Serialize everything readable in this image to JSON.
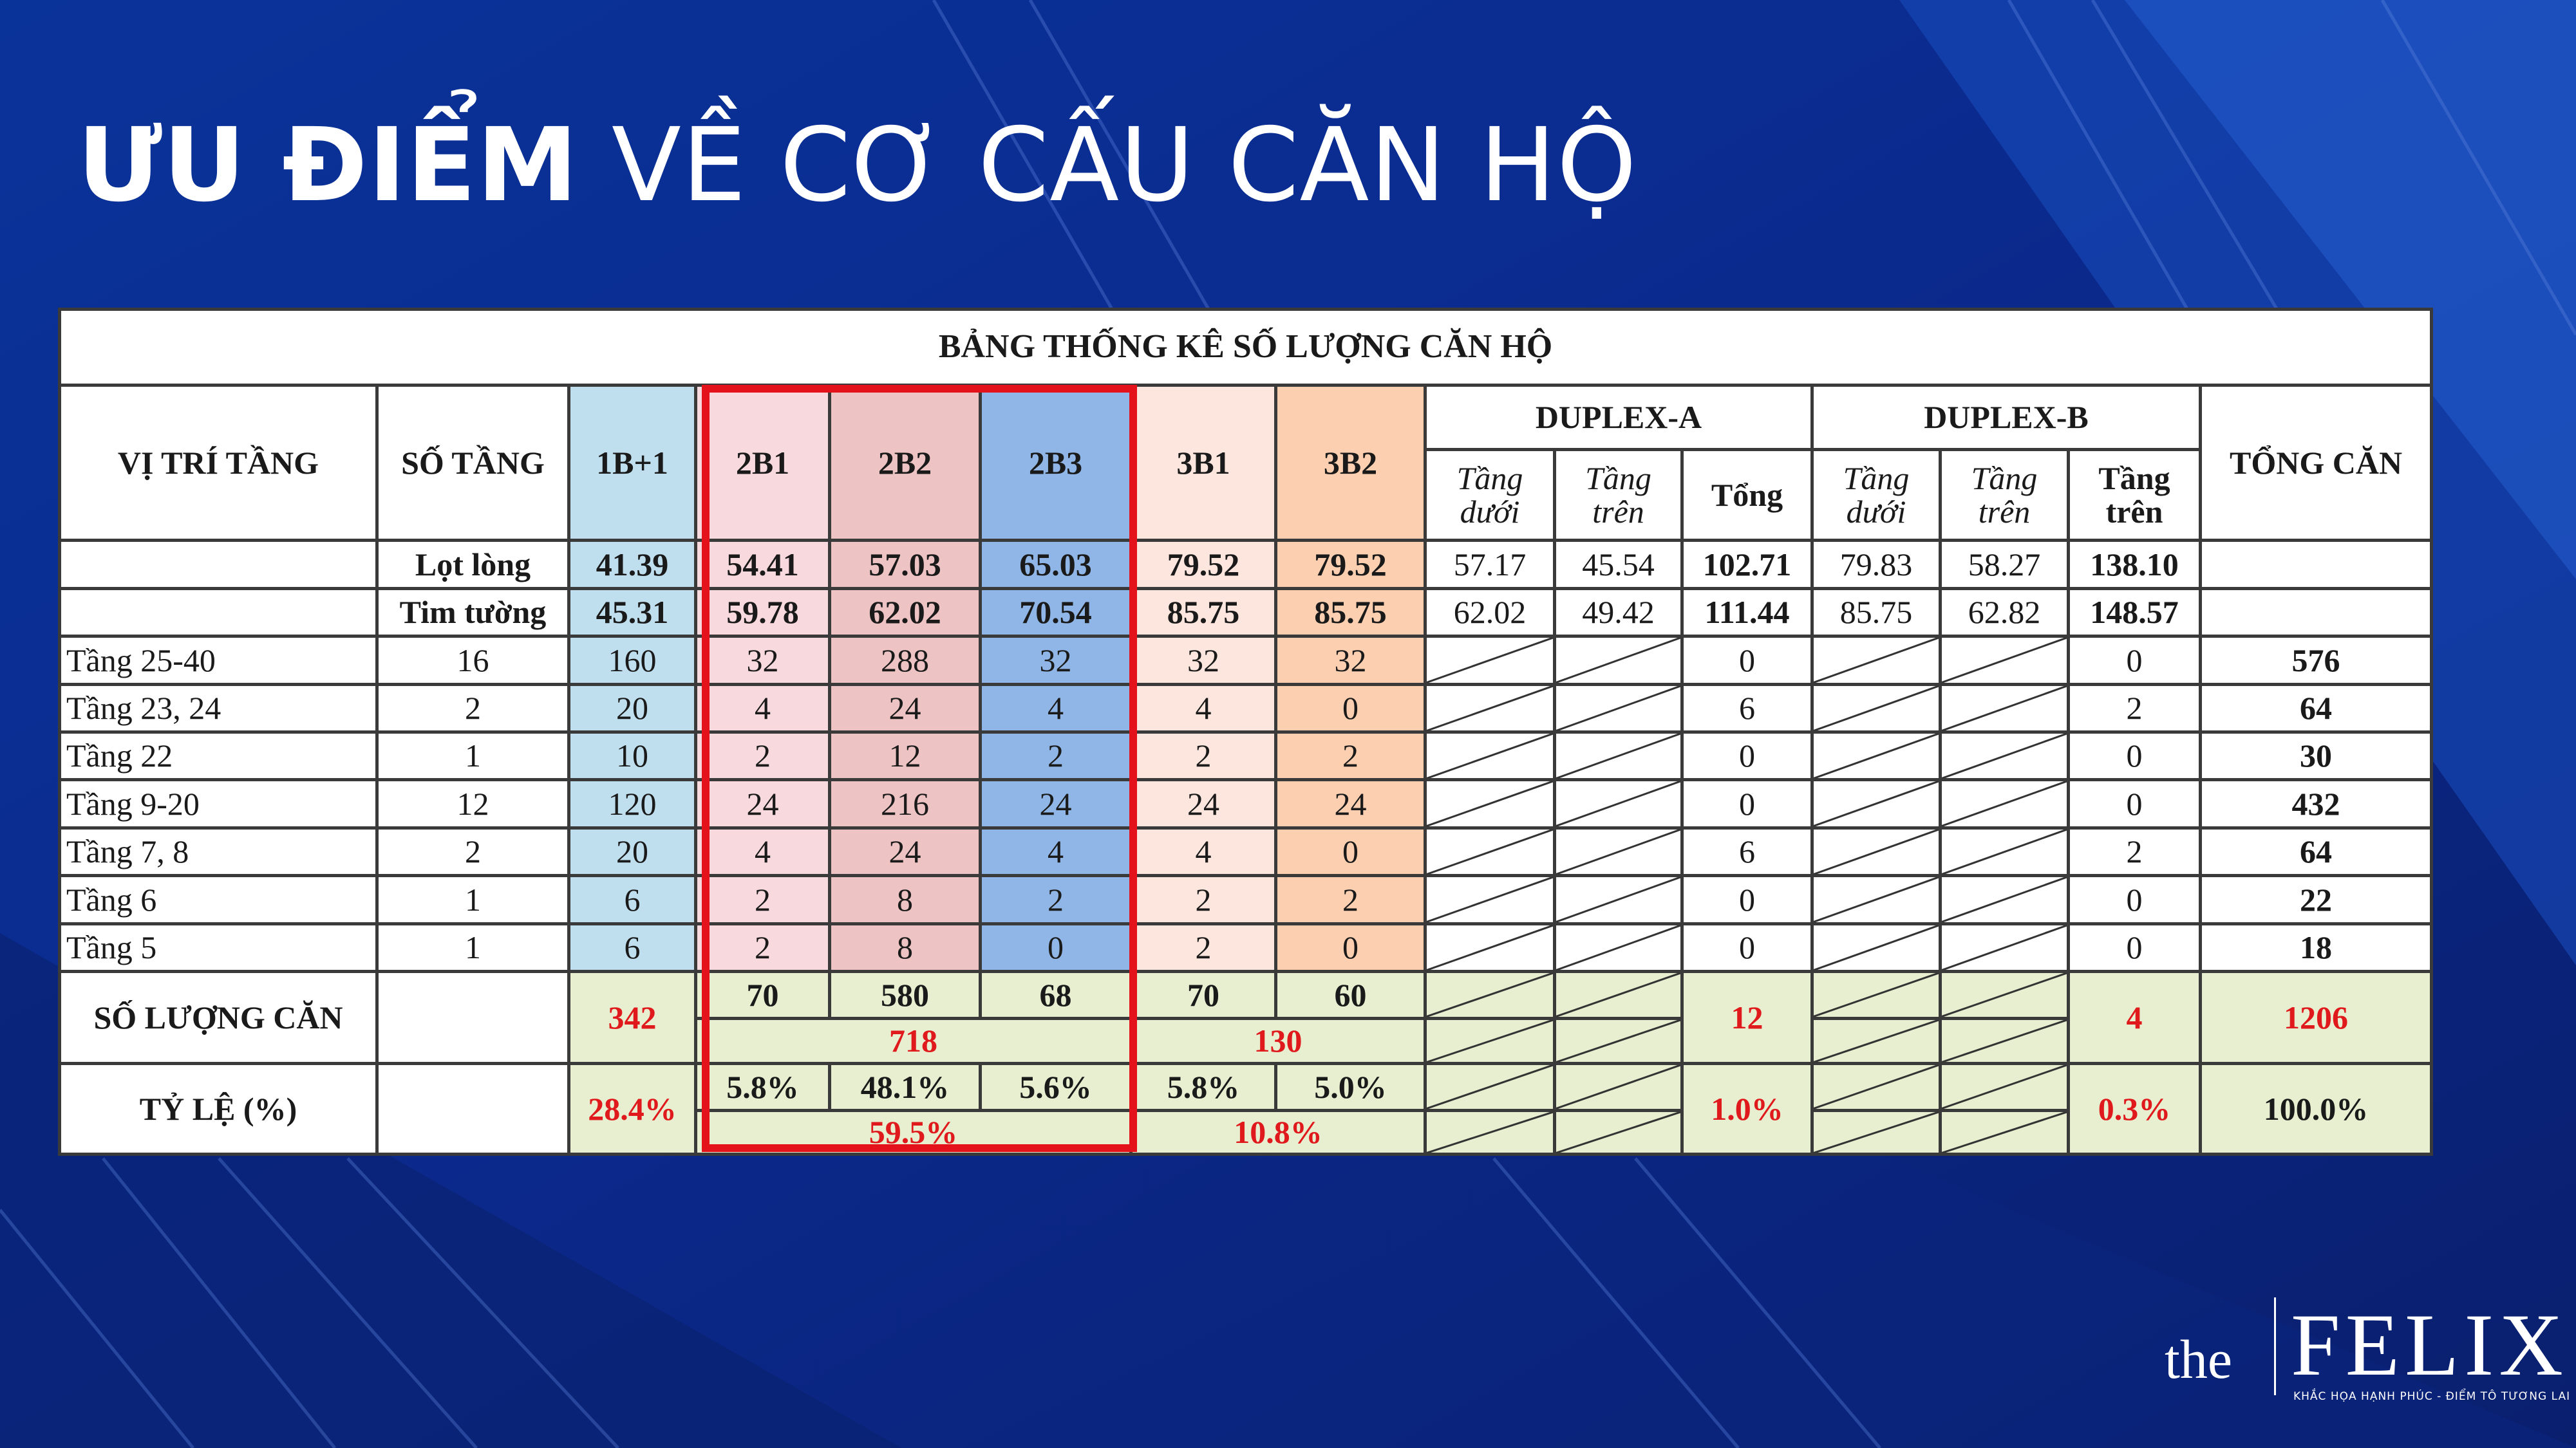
{
  "title": {
    "bold": "ƯU ĐIỂM",
    "regular": "VỀ CƠ CẤU CĂN HỘ"
  },
  "table": {
    "caption": "BẢNG THỐNG KÊ SỐ LƯỢNG CĂN HỘ",
    "headers": {
      "vi_tri": "VỊ TRÍ TẦNG",
      "so_tang": "SỐ TẦNG",
      "t1b1": "1B+1",
      "t2b1": "2B1",
      "t2b2": "2B2",
      "t2b3": "2B3",
      "t3b1": "3B1",
      "t3b2": "3B2",
      "duplex_a": "DUPLEX-A",
      "duplex_b": "DUPLEX-B",
      "tong_can": "TỔNG CĂN",
      "tang_duoi": "Tầng dưới",
      "tang_tren": "Tầng trên",
      "tong": "Tổng",
      "tang_tren_bold": "Tầng trên"
    },
    "area_rows": [
      {
        "label": "Lọt lòng",
        "values": [
          "41.39",
          "54.41",
          "57.03",
          "65.03",
          "79.52",
          "79.52",
          "57.17",
          "45.54",
          "102.71",
          "79.83",
          "58.27",
          "138.10"
        ]
      },
      {
        "label": "Tim tường",
        "values": [
          "45.31",
          "59.78",
          "62.02",
          "70.54",
          "85.75",
          "85.75",
          "62.02",
          "49.42",
          "111.44",
          "85.75",
          "62.82",
          "148.57"
        ]
      }
    ],
    "floor_rows": [
      {
        "label": "Tầng 25-40",
        "floors": "16",
        "t1b1": "160",
        "t2b1": "32",
        "t2b2": "288",
        "t2b3": "32",
        "t3b1": "32",
        "t3b2": "32",
        "da": "0",
        "db": "0",
        "total": "576"
      },
      {
        "label": "Tầng 23, 24",
        "floors": "2",
        "t1b1": "20",
        "t2b1": "4",
        "t2b2": "24",
        "t2b3": "4",
        "t3b1": "4",
        "t3b2": "0",
        "da": "6",
        "db": "2",
        "total": "64"
      },
      {
        "label": "Tầng 22",
        "floors": "1",
        "t1b1": "10",
        "t2b1": "2",
        "t2b2": "12",
        "t2b3": "2",
        "t3b1": "2",
        "t3b2": "2",
        "da": "0",
        "db": "0",
        "total": "30"
      },
      {
        "label": "Tầng 9-20",
        "floors": "12",
        "t1b1": "120",
        "t2b1": "24",
        "t2b2": "216",
        "t2b3": "24",
        "t3b1": "24",
        "t3b2": "24",
        "da": "0",
        "db": "0",
        "total": "432"
      },
      {
        "label": "Tầng 7, 8",
        "floors": "2",
        "t1b1": "20",
        "t2b1": "4",
        "t2b2": "24",
        "t2b3": "4",
        "t3b1": "4",
        "t3b2": "0",
        "da": "6",
        "db": "2",
        "total": "64"
      },
      {
        "label": "Tầng 6",
        "floors": "1",
        "t1b1": "6",
        "t2b1": "2",
        "t2b2": "8",
        "t2b3": "2",
        "t3b1": "2",
        "t3b2": "2",
        "da": "0",
        "db": "0",
        "total": "22"
      },
      {
        "label": "Tầng 5",
        "floors": "1",
        "t1b1": "6",
        "t2b1": "2",
        "t2b2": "8",
        "t2b3": "0",
        "t3b1": "2",
        "t3b2": "0",
        "da": "0",
        "db": "0",
        "total": "18"
      }
    ],
    "count_row": {
      "label": "SỐ LƯỢNG CĂN",
      "t1b1": "342",
      "t2b1": "70",
      "t2b2": "580",
      "t2b3": "68",
      "group2": "718",
      "t3b1": "70",
      "t3b2": "60",
      "group3": "130",
      "da": "12",
      "db": "4",
      "total": "1206"
    },
    "ratio_row": {
      "label": "TỶ LỆ (%)",
      "t1b1": "28.4%",
      "t2b1": "5.8%",
      "t2b2": "48.1%",
      "t2b3": "5.6%",
      "group2": "59.5%",
      "t3b1": "5.8%",
      "t3b2": "5.0%",
      "group3": "10.8%",
      "da": "1.0%",
      "db": "0.3%",
      "total": "100.0%"
    }
  },
  "logo": {
    "the": "the",
    "word": "FELIX",
    "tagline": "KHẮC HỌA HẠNH PHÚC - ĐIỂM TÔ TƯƠNG LAI"
  },
  "colors": {
    "background": "#0b2a8e",
    "highlight": "#e3121b",
    "accent_red": "#e0191c"
  }
}
